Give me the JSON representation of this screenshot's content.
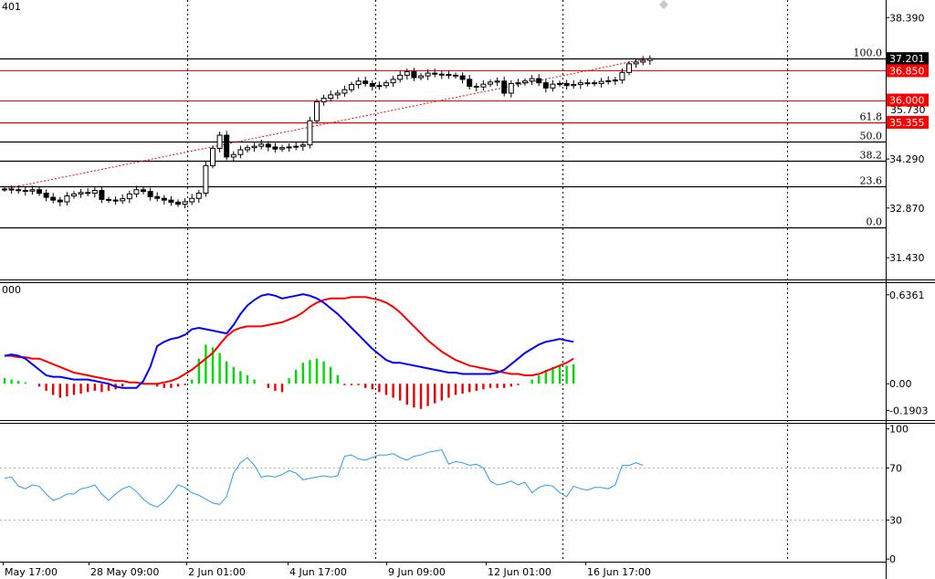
{
  "chart_data": [
    {
      "type": "candlestick",
      "panel": "price",
      "header": "401",
      "y_ticks": [
        "38.390",
        "34.290",
        "32.870",
        "31.430"
      ],
      "y_tick_values": [
        38.39,
        34.29,
        32.87,
        31.43
      ],
      "ylim": [
        30.8,
        38.9
      ],
      "fib_levels": [
        {
          "label": "100.0",
          "value": 37.201
        },
        {
          "label": "61.8",
          "value": 35.355
        },
        {
          "label": "50.0",
          "value": 34.81
        },
        {
          "label": "38.2",
          "value": 34.24
        },
        {
          "label": "23.6",
          "value": 33.5
        },
        {
          "label": "0.0",
          "value": 32.32
        }
      ],
      "horizontal_lines": [
        {
          "label": "37.201",
          "value": 37.201,
          "color": "#000000"
        },
        {
          "label": "36.850",
          "value": 36.85,
          "color": "#ff0000"
        },
        {
          "label": "36.000",
          "value": 36.0,
          "color": "#ff0000"
        },
        {
          "label": "35.355",
          "value": 35.355,
          "color": "#ff0000"
        }
      ],
      "hidden_tick": "35.730",
      "trendline": {
        "from": [
          0,
          33.42
        ],
        "to": [
          140,
          37.22
        ]
      },
      "closes": [
        33.42,
        33.4,
        33.38,
        33.36,
        33.4,
        33.3,
        33.18,
        33.1,
        33.05,
        33.22,
        33.28,
        33.32,
        33.3,
        33.38,
        33.12,
        33.1,
        33.08,
        33.14,
        33.28,
        33.4,
        33.35,
        33.2,
        33.15,
        33.1,
        33.04,
        32.98,
        33.05,
        33.15,
        33.3,
        34.1,
        34.6,
        34.98,
        34.35,
        34.42,
        34.56,
        34.62,
        34.66,
        34.72,
        34.64,
        34.58,
        34.62,
        34.64,
        34.66,
        34.7,
        35.4,
        35.95,
        36.05,
        36.15,
        36.2,
        36.3,
        36.45,
        36.55,
        36.48,
        36.4,
        36.42,
        36.5,
        36.6,
        36.72,
        36.82,
        36.65,
        36.7,
        36.78,
        36.75,
        36.74,
        36.72,
        36.7,
        36.6,
        36.4,
        36.38,
        36.46,
        36.52,
        36.55,
        36.2,
        36.48,
        36.5,
        36.55,
        36.62,
        36.5,
        36.35,
        36.46,
        36.48,
        36.42,
        36.45,
        36.5,
        36.5,
        36.48,
        36.54,
        36.56,
        36.58,
        36.8,
        37.05,
        37.1,
        37.15,
        37.2
      ],
      "x_labels": [
        "May 17:00",
        "28 May 09:00",
        "2 Jun 01:00",
        "4 Jun 17:00",
        "9 Jun 09:00",
        "12 Jun 01:00",
        "16 Jun 17:00"
      ]
    },
    {
      "type": "histogram+line",
      "panel": "macd",
      "header": "000",
      "y_ticks": [
        "0.6361",
        "0.00",
        "-0.1903"
      ],
      "y_tick_values": [
        0.6361,
        0.0,
        -0.1903
      ],
      "ylim": [
        -0.26,
        0.72
      ],
      "histogram": [
        0.04,
        0.03,
        0.02,
        0.01,
        0.0,
        -0.02,
        -0.05,
        -0.08,
        -0.1,
        -0.09,
        -0.08,
        -0.07,
        -0.06,
        -0.05,
        -0.06,
        -0.05,
        -0.04,
        -0.02,
        0.0,
        0.01,
        0.01,
        0.0,
        -0.02,
        -0.03,
        -0.03,
        -0.02,
        -0.01,
        0.03,
        0.18,
        0.28,
        0.26,
        0.22,
        0.16,
        0.12,
        0.09,
        0.06,
        0.03,
        0.0,
        -0.03,
        -0.05,
        -0.06,
        0.04,
        0.1,
        0.15,
        0.17,
        0.18,
        0.16,
        0.12,
        0.06,
        -0.01,
        -0.01,
        -0.01,
        -0.03,
        -0.04,
        -0.06,
        -0.08,
        -0.1,
        -0.12,
        -0.15,
        -0.17,
        -0.18,
        -0.16,
        -0.14,
        -0.12,
        -0.1,
        -0.08,
        -0.07,
        -0.06,
        -0.05,
        -0.04,
        -0.03,
        -0.03,
        -0.03,
        -0.02,
        -0.01,
        0.0,
        0.03,
        0.06,
        0.1,
        0.12,
        0.13,
        0.13,
        0.14
      ],
      "signal_line": [
        0.2,
        0.2,
        0.19,
        0.19,
        0.18,
        0.18,
        0.16,
        0.14,
        0.12,
        0.1,
        0.08,
        0.07,
        0.06,
        0.05,
        0.04,
        0.03,
        0.02,
        0.02,
        0.01,
        0.01,
        0.0,
        0.0,
        0.0,
        0.01,
        0.02,
        0.04,
        0.07,
        0.1,
        0.14,
        0.18,
        0.22,
        0.28,
        0.34,
        0.38,
        0.4,
        0.41,
        0.41,
        0.41,
        0.42,
        0.43,
        0.44,
        0.46,
        0.48,
        0.51,
        0.55,
        0.58,
        0.6,
        0.61,
        0.61,
        0.61,
        0.62,
        0.62,
        0.62,
        0.61,
        0.6,
        0.58,
        0.55,
        0.51,
        0.46,
        0.41,
        0.36,
        0.31,
        0.27,
        0.23,
        0.2,
        0.17,
        0.15,
        0.13,
        0.12,
        0.11,
        0.1,
        0.09,
        0.08,
        0.07,
        0.07,
        0.06,
        0.06,
        0.07,
        0.09,
        0.11,
        0.13,
        0.15,
        0.18
      ],
      "macd_line": [
        0.2,
        0.21,
        0.2,
        0.18,
        0.14,
        0.1,
        0.06,
        0.05,
        0.05,
        0.04,
        0.03,
        0.03,
        0.03,
        0.02,
        0.01,
        0.0,
        -0.02,
        -0.03,
        -0.03,
        -0.03,
        0.02,
        0.12,
        0.27,
        0.3,
        0.32,
        0.33,
        0.35,
        0.39,
        0.4,
        0.39,
        0.38,
        0.37,
        0.36,
        0.42,
        0.5,
        0.56,
        0.6,
        0.63,
        0.64,
        0.63,
        0.61,
        0.62,
        0.63,
        0.64,
        0.63,
        0.61,
        0.58,
        0.54,
        0.5,
        0.45,
        0.4,
        0.35,
        0.3,
        0.25,
        0.21,
        0.17,
        0.15,
        0.15,
        0.14,
        0.13,
        0.12,
        0.11,
        0.1,
        0.09,
        0.08,
        0.08,
        0.07,
        0.07,
        0.07,
        0.07,
        0.07,
        0.08,
        0.1,
        0.14,
        0.18,
        0.22,
        0.25,
        0.28,
        0.3,
        0.31,
        0.32,
        0.31,
        0.3
      ],
      "colors": {
        "macd": "#0000ff",
        "signal": "#ff0000",
        "up": "#00dd00",
        "down": "#ee0000"
      }
    },
    {
      "type": "line",
      "panel": "rsi",
      "y_ticks": [
        "100",
        "70",
        "30",
        "0"
      ],
      "y_tick_values": [
        100,
        70,
        30,
        0
      ],
      "ylim": [
        -2,
        104
      ],
      "values": [
        62,
        63,
        56,
        54,
        57,
        56,
        50,
        45,
        47,
        50,
        50,
        54,
        55,
        57,
        50,
        45,
        50,
        54,
        56,
        52,
        46,
        42,
        40,
        44,
        50,
        57,
        55,
        51,
        49,
        46,
        43,
        42,
        48,
        66,
        74,
        78,
        72,
        63,
        64,
        63,
        65,
        68,
        66,
        61,
        62,
        63,
        64,
        63,
        64,
        79,
        80,
        77,
        76,
        78,
        80,
        80,
        81,
        78,
        76,
        79,
        80,
        82,
        83,
        84,
        73,
        75,
        74,
        72,
        73,
        70,
        60,
        57,
        58,
        60,
        57,
        59,
        51,
        55,
        57,
        56,
        51,
        48,
        56,
        54,
        53,
        55,
        55,
        54,
        57,
        72,
        72,
        74,
        72
      ],
      "color": "#2a9df4"
    }
  ]
}
